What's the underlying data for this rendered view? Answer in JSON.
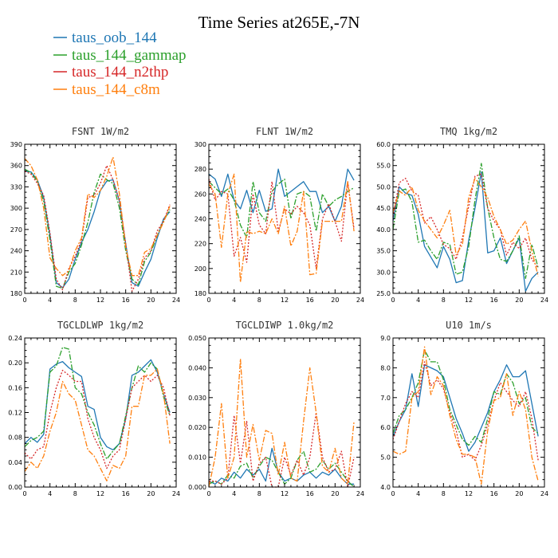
{
  "figure": {
    "title": "Time Series at265E,-7N"
  },
  "legend": [
    {
      "name": "taus_oob_144",
      "color": "#1f77b4",
      "dash": "solid"
    },
    {
      "name": "taus_144_gammap",
      "color": "#2ca02c",
      "dash": "dashdot"
    },
    {
      "name": "taus_144_n2thp",
      "color": "#d62728",
      "dash": "dot"
    },
    {
      "name": "taus_144_c8m",
      "color": "#ff7f0e",
      "dash": "dashdot"
    }
  ],
  "chart_data": [
    {
      "type": "line",
      "title": "FSNT  1W/m2",
      "xlim": [
        0,
        24
      ],
      "ylim": [
        180,
        390
      ],
      "xticks": [
        "0",
        "4",
        "8",
        "12",
        "16",
        "20",
        "24"
      ],
      "yticks": [
        "180",
        "210",
        "240",
        "270",
        "300",
        "330",
        "360",
        "390"
      ],
      "x": [
        0,
        1,
        2,
        3,
        4,
        5,
        6,
        7,
        8,
        9,
        10,
        11,
        12,
        13,
        14,
        15,
        16,
        17,
        18,
        19,
        20,
        21,
        22,
        23
      ],
      "series": [
        {
          "name": "taus_oob_144",
          "values": [
            352,
            351,
            340,
            315,
            262,
            195,
            188,
            200,
            228,
            252,
            270,
            295,
            325,
            338,
            340,
            310,
            250,
            195,
            190,
            210,
            228,
            258,
            285,
            295
          ]
        },
        {
          "name": "taus_144_gammap",
          "values": [
            355,
            350,
            338,
            310,
            255,
            190,
            187,
            210,
            222,
            248,
            280,
            322,
            348,
            340,
            335,
            300,
            240,
            200,
            192,
            225,
            238,
            262,
            282,
            298
          ]
        },
        {
          "name": "taus_144_n2thp",
          "values": [
            352,
            348,
            335,
            318,
            265,
            200,
            185,
            215,
            232,
            255,
            315,
            318,
            335,
            360,
            340,
            310,
            250,
            183,
            200,
            230,
            240,
            268,
            282,
            305
          ]
        },
        {
          "name": "taus_144_c8m",
          "values": [
            370,
            360,
            340,
            300,
            230,
            215,
            205,
            212,
            240,
            258,
            320,
            315,
            325,
            345,
            372,
            320,
            245,
            205,
            205,
            238,
            243,
            262,
            280,
            303
          ]
        }
      ]
    },
    {
      "type": "line",
      "title": "FLNT  1W/m2",
      "xlim": [
        0,
        24
      ],
      "ylim": [
        180,
        300
      ],
      "xticks": [
        "0",
        "4",
        "8",
        "12",
        "16",
        "20",
        "24"
      ],
      "yticks": [
        "180",
        "200",
        "220",
        "240",
        "260",
        "280",
        "300"
      ],
      "x": [
        0,
        1,
        2,
        3,
        4,
        5,
        6,
        7,
        8,
        9,
        10,
        11,
        12,
        13,
        14,
        15,
        16,
        17,
        18,
        19,
        20,
        21,
        22,
        23
      ],
      "series": [
        {
          "name": "taus_oob_144",
          "values": [
            276,
            272,
            258,
            276,
            255,
            248,
            263,
            245,
            263,
            246,
            248,
            280,
            258,
            262,
            266,
            270,
            262,
            262,
            245,
            250,
            238,
            250,
            280,
            271
          ]
        },
        {
          "name": "taus_144_gammap",
          "values": [
            270,
            265,
            260,
            264,
            255,
            235,
            225,
            270,
            245,
            238,
            262,
            268,
            272,
            240,
            260,
            262,
            258,
            230,
            260,
            250,
            255,
            258,
            262,
            265
          ]
        },
        {
          "name": "taus_144_n2thp",
          "values": [
            272,
            255,
            262,
            260,
            210,
            225,
            205,
            260,
            235,
            228,
            270,
            230,
            248,
            244,
            250,
            245,
            235,
            200,
            240,
            252,
            238,
            222,
            270,
            232
          ]
        },
        {
          "name": "taus_144_c8m",
          "values": [
            268,
            260,
            217,
            260,
            276,
            189,
            230,
            228,
            230,
            228,
            240,
            228,
            250,
            218,
            230,
            262,
            195,
            196,
            238,
            238,
            238,
            238,
            270,
            230
          ]
        }
      ]
    },
    {
      "type": "line",
      "title": "TMQ  1kg/m2",
      "xlim": [
        0,
        24
      ],
      "ylim": [
        25.0,
        60.0
      ],
      "xticks": [
        "0",
        "4",
        "8",
        "12",
        "16",
        "20",
        "24"
      ],
      "yticks": [
        "25.0",
        "30.0",
        "35.0",
        "40.0",
        "45.0",
        "50.0",
        "55.0",
        "60.0"
      ],
      "x": [
        0,
        1,
        2,
        3,
        4,
        5,
        6,
        7,
        8,
        9,
        10,
        11,
        12,
        13,
        14,
        15,
        16,
        17,
        18,
        19,
        20,
        21,
        22,
        23
      ],
      "series": [
        {
          "name": "taus_oob_144",
          "values": [
            42.0,
            50.0,
            48.5,
            48.0,
            43.5,
            36.0,
            33.5,
            31.0,
            36.0,
            33.0,
            27.5,
            28.0,
            37.5,
            45.0,
            53.5,
            34.5,
            35.0,
            38.0,
            32.0,
            35.0,
            38.0,
            25.5,
            28.5,
            30.0
          ]
        },
        {
          "name": "taus_144_gammap",
          "values": [
            40.0,
            49.0,
            49.5,
            46.5,
            37.0,
            37.5,
            35.0,
            33.0,
            37.0,
            36.5,
            29.5,
            30.0,
            36.0,
            47.0,
            55.5,
            45.0,
            38.0,
            33.0,
            32.5,
            35.0,
            38.5,
            28.5,
            36.5,
            31.0
          ]
        },
        {
          "name": "taus_144_n2thp",
          "values": [
            43.0,
            51.0,
            52.0,
            49.0,
            48.0,
            41.5,
            43.0,
            40.0,
            36.5,
            35.5,
            33.0,
            38.0,
            45.5,
            52.5,
            53.0,
            45.0,
            42.0,
            40.0,
            34.0,
            37.0,
            35.5,
            38.0,
            33.0,
            31.0
          ]
        },
        {
          "name": "taus_144_c8m",
          "values": [
            44.0,
            49.0,
            48.0,
            50.0,
            44.5,
            42.0,
            40.0,
            38.0,
            41.0,
            44.5,
            34.0,
            36.5,
            47.5,
            52.0,
            50.0,
            47.5,
            43.0,
            40.0,
            36.5,
            37.5,
            40.0,
            42.0,
            35.0,
            29.0
          ]
        }
      ]
    },
    {
      "type": "line",
      "title": "TGCLDLWP  1kg/m2",
      "xlim": [
        0,
        24
      ],
      "ylim": [
        0.0,
        0.24
      ],
      "xticks": [
        "0",
        "4",
        "8",
        "12",
        "16",
        "20",
        "24"
      ],
      "yticks": [
        "0.00",
        "0.04",
        "0.08",
        "0.12",
        "0.16",
        "0.20",
        "0.24"
      ],
      "x": [
        0,
        1,
        2,
        3,
        4,
        5,
        6,
        7,
        8,
        9,
        10,
        11,
        12,
        13,
        14,
        15,
        16,
        17,
        18,
        19,
        20,
        21,
        22,
        23
      ],
      "series": [
        {
          "name": "taus_oob_144",
          "values": [
            0.07,
            0.08,
            0.072,
            0.085,
            0.19,
            0.198,
            0.202,
            0.192,
            0.185,
            0.178,
            0.13,
            0.125,
            0.08,
            0.065,
            0.06,
            0.07,
            0.11,
            0.18,
            0.185,
            0.195,
            0.205,
            0.185,
            0.15,
            0.12
          ]
        },
        {
          "name": "taus_144_gammap",
          "values": [
            0.065,
            0.075,
            0.08,
            0.09,
            0.185,
            0.195,
            0.225,
            0.222,
            0.16,
            0.15,
            0.12,
            0.1,
            0.07,
            0.045,
            0.058,
            0.07,
            0.115,
            0.16,
            0.195,
            0.185,
            0.2,
            0.19,
            0.145,
            0.115
          ]
        },
        {
          "name": "taus_144_n2thp",
          "values": [
            0.055,
            0.045,
            0.06,
            0.065,
            0.12,
            0.16,
            0.188,
            0.18,
            0.17,
            0.17,
            0.11,
            0.08,
            0.06,
            0.03,
            0.05,
            0.06,
            0.11,
            0.16,
            0.17,
            0.18,
            0.17,
            0.18,
            0.16,
            0.115
          ]
        },
        {
          "name": "taus_144_c8m",
          "values": [
            0.025,
            0.04,
            0.03,
            0.05,
            0.09,
            0.12,
            0.17,
            0.15,
            0.14,
            0.1,
            0.06,
            0.05,
            0.03,
            0.01,
            0.035,
            0.03,
            0.05,
            0.13,
            0.13,
            0.18,
            0.18,
            0.19,
            0.15,
            0.07
          ]
        }
      ]
    },
    {
      "type": "line",
      "title": "TGCLDIWP  1.0kg/m2",
      "xlim": [
        0,
        24
      ],
      "ylim": [
        0.0,
        0.05
      ],
      "xticks": [
        "0",
        "4",
        "8",
        "12",
        "16",
        "20",
        "24"
      ],
      "yticks": [
        "0.000",
        "0.010",
        "0.020",
        "0.030",
        "0.040",
        "0.050"
      ],
      "x": [
        0,
        1,
        2,
        3,
        4,
        5,
        6,
        7,
        8,
        9,
        10,
        11,
        12,
        13,
        14,
        15,
        16,
        17,
        18,
        19,
        20,
        21,
        22,
        23
      ],
      "series": [
        {
          "name": "taus_oob_144",
          "values": [
            0.002,
            0.001,
            0.003,
            0.002,
            0.005,
            0.003,
            0.006,
            0.004,
            0.006,
            0.002,
            0.013,
            0.005,
            0.002,
            0.003,
            0.002,
            0.004,
            0.005,
            0.003,
            0.005,
            0.004,
            0.006,
            0.003,
            0.001,
            0.001
          ]
        },
        {
          "name": "taus_144_gammap",
          "values": [
            0.001,
            0.002,
            0.001,
            0.004,
            0.003,
            0.007,
            0.008,
            0.003,
            0.007,
            0.01,
            0.009,
            0.005,
            0.001,
            0.003,
            0.009,
            0.012,
            0.005,
            0.006,
            0.009,
            0.006,
            0.008,
            0.005,
            0.002,
            0.0
          ]
        },
        {
          "name": "taus_144_n2thp",
          "values": [
            0.002,
            0.002,
            0.001,
            0.003,
            0.024,
            0.008,
            0.022,
            0.002,
            0.008,
            0.01,
            0.0,
            0.0,
            0.01,
            0.004,
            0.009,
            0.004,
            0.01,
            0.025,
            0.01,
            0.005,
            0.006,
            0.012,
            0.0,
            0.01
          ]
        },
        {
          "name": "taus_144_c8m",
          "values": [
            0.0,
            0.01,
            0.028,
            0.003,
            0.01,
            0.043,
            0.01,
            0.021,
            0.009,
            0.019,
            0.018,
            0.004,
            0.015,
            0.003,
            0.002,
            0.022,
            0.04,
            0.025,
            0.007,
            0.005,
            0.013,
            0.003,
            0.001,
            0.022
          ]
        }
      ]
    },
    {
      "type": "line",
      "title": "U10  1m/s",
      "xlim": [
        0,
        24
      ],
      "ylim": [
        4.0,
        9.0
      ],
      "xticks": [
        "0",
        "4",
        "8",
        "12",
        "16",
        "20",
        "24"
      ],
      "yticks": [
        "4.0",
        "5.0",
        "6.0",
        "7.0",
        "8.0",
        "9.0"
      ],
      "x": [
        0,
        1,
        2,
        3,
        4,
        5,
        6,
        7,
        8,
        9,
        10,
        11,
        12,
        13,
        14,
        15,
        16,
        17,
        18,
        19,
        20,
        21,
        22,
        23
      ],
      "series": [
        {
          "name": "taus_oob_144",
          "values": [
            5.7,
            6.2,
            6.6,
            7.8,
            6.7,
            8.1,
            8.0,
            7.9,
            7.7,
            7.0,
            6.3,
            5.8,
            5.2,
            5.5,
            6.0,
            6.5,
            7.2,
            7.6,
            8.1,
            7.7,
            7.7,
            7.9,
            6.8,
            5.7
          ]
        },
        {
          "name": "taus_144_gammap",
          "values": [
            5.8,
            6.4,
            6.6,
            7.0,
            7.5,
            8.6,
            8.2,
            8.2,
            7.6,
            6.6,
            6.1,
            5.6,
            5.4,
            5.7,
            5.5,
            6.3,
            7.2,
            7.1,
            7.8,
            7.5,
            6.8,
            7.0,
            6.0,
            5.8
          ]
        },
        {
          "name": "taus_144_n2thp",
          "values": [
            5.6,
            6.2,
            6.8,
            7.2,
            7.0,
            8.2,
            7.4,
            7.6,
            7.3,
            6.5,
            5.9,
            5.0,
            5.1,
            4.9,
            5.4,
            6.1,
            6.9,
            7.5,
            7.2,
            6.9,
            6.7,
            7.2,
            6.3,
            4.9
          ]
        },
        {
          "name": "taus_144_c8m",
          "values": [
            5.2,
            5.1,
            5.2,
            7.0,
            7.2,
            8.7,
            7.1,
            7.7,
            7.4,
            6.4,
            5.6,
            5.1,
            5.1,
            5.0,
            4.1,
            5.9,
            6.9,
            7.0,
            7.8,
            6.4,
            7.2,
            6.6,
            5.0,
            4.2
          ]
        }
      ]
    }
  ]
}
